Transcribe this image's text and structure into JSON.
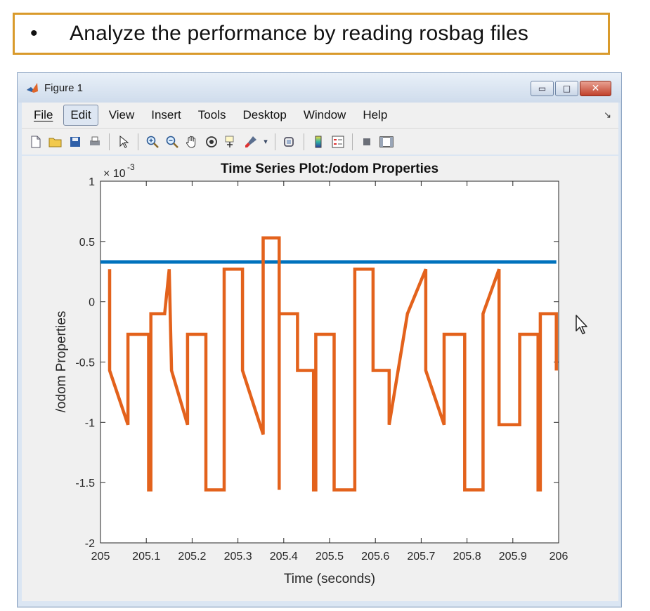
{
  "slide": {
    "bullet": "•",
    "text": "Analyze the performance by reading rosbag files"
  },
  "window": {
    "title": "Figure 1",
    "controls": {
      "minimize": "▭",
      "maximize": "□",
      "close": "✕"
    }
  },
  "menu": {
    "items": [
      {
        "name": "file",
        "label": "File"
      },
      {
        "name": "edit",
        "label": "Edit",
        "active": true
      },
      {
        "name": "view",
        "label": "View"
      },
      {
        "name": "insert",
        "label": "Insert"
      },
      {
        "name": "tools",
        "label": "Tools"
      },
      {
        "name": "desktop",
        "label": "Desktop"
      },
      {
        "name": "window",
        "label": "Window"
      },
      {
        "name": "help",
        "label": "Help"
      }
    ],
    "overflow_icon": "dock-arrow-icon"
  },
  "toolbar": {
    "icons": [
      "new-figure-icon",
      "open-file-icon",
      "save-icon",
      "print-icon",
      "select-pointer-icon",
      "zoom-in-icon",
      "zoom-out-icon",
      "pan-hand-icon",
      "rotate-3d-icon",
      "data-cursor-icon",
      "brush-icon",
      "link-plot-icon",
      "colorbar-icon",
      "legend-icon",
      "hide-plot-tools-icon",
      "show-plot-tools-icon"
    ]
  },
  "chart_data": {
    "type": "line",
    "title": "Time Series Plot:/odom Properties",
    "xlabel": "Time (seconds)",
    "ylabel": "/odom Properties",
    "y_exponent": "× 10^-3",
    "xlim": [
      205,
      206
    ],
    "ylim": [
      -2,
      1
    ],
    "x_ticks": [
      "205",
      "205.1",
      "205.2",
      "205.3",
      "205.4",
      "205.5",
      "205.6",
      "205.7",
      "205.8",
      "205.9",
      "206"
    ],
    "y_ticks": [
      "-2",
      "-1.5",
      "-1",
      "-0.5",
      "0",
      "0.5",
      "1"
    ],
    "grid": false,
    "legend": "none",
    "series": [
      {
        "color": "#0072bd",
        "x": [
          205.0,
          205.995
        ],
        "y": [
          0.33,
          0.33
        ]
      },
      {
        "color": "#e3621c",
        "x": [
          205.02,
          205.02,
          205.06,
          205.06,
          205.105,
          205.105,
          205.11,
          205.11,
          205.14,
          205.15,
          205.155,
          205.19,
          205.19,
          205.23,
          205.23,
          205.27,
          205.27,
          205.31,
          205.31,
          205.355,
          205.355,
          205.39,
          205.39,
          205.39,
          205.43,
          205.43,
          205.465,
          205.465,
          205.47,
          205.47,
          205.51,
          205.51,
          205.555,
          205.555,
          205.595,
          205.595,
          205.63,
          205.63,
          205.67,
          205.67,
          205.71,
          205.71,
          205.75,
          205.75,
          205.75,
          205.795,
          205.795,
          205.835,
          205.835,
          205.87,
          205.87,
          205.915,
          205.915,
          205.955,
          205.955,
          205.96,
          205.96,
          205.995,
          205.995
        ],
        "y": [
          0.27,
          -0.57,
          -1.02,
          -0.27,
          -0.27,
          -1.56,
          -1.56,
          -0.1,
          -0.1,
          0.27,
          -0.57,
          -1.02,
          -0.27,
          -0.27,
          -1.56,
          -1.56,
          0.27,
          0.27,
          -0.57,
          -1.1,
          0.53,
          0.53,
          -1.56,
          -0.1,
          -0.1,
          -0.57,
          -0.57,
          -1.56,
          -1.56,
          -0.27,
          -0.27,
          -1.56,
          -1.56,
          0.27,
          0.27,
          -0.57,
          -0.57,
          -1.02,
          -0.1,
          -0.1,
          0.27,
          -0.57,
          -1.02,
          -0.27,
          -0.27,
          -0.27,
          -1.56,
          -1.56,
          -0.1,
          0.27,
          -1.02,
          -1.02,
          -0.27,
          -0.27,
          -1.56,
          -1.56,
          -0.1,
          -0.1,
          -0.57
        ]
      }
    ]
  },
  "cursor": "mouse-pointer-icon"
}
